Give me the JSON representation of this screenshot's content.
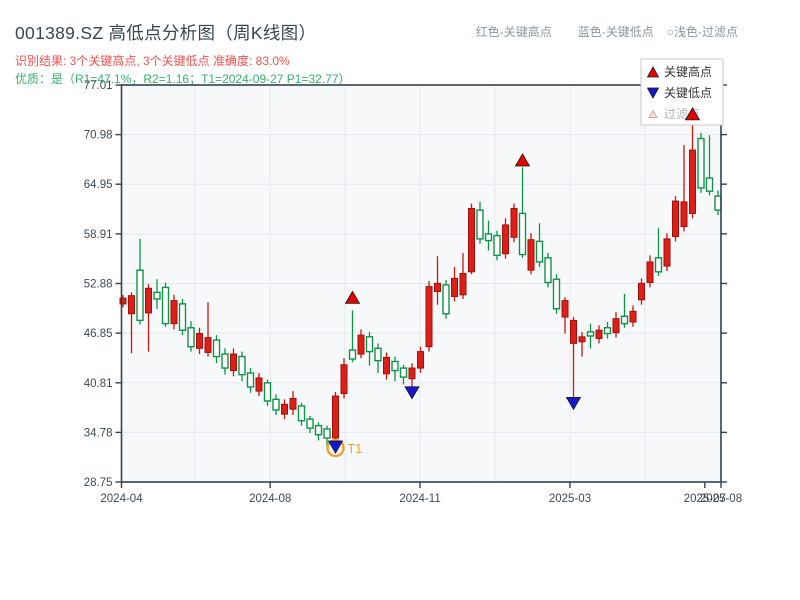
{
  "header": {
    "title": "001389.SZ 高低点分析图（周K线图）",
    "note_high": "红色-关键高点",
    "note_low": "蓝色-关键低点",
    "note_filtered": "○浅色-过滤点"
  },
  "analysis": {
    "result_line": "识别结果: 3个关键高点, 3个关键低点  准确度: 83.0%",
    "quality_line": "优质：是（R1=47.1%，R2=1.16；T1=2024-09-27 P1=32.77）"
  },
  "legend": {
    "items": [
      {
        "label": "关键高点",
        "marker": "high"
      },
      {
        "label": "关键低点",
        "marker": "low"
      },
      {
        "label": "过滤点",
        "marker": "filtered"
      }
    ]
  },
  "chart_data": {
    "type": "candlestick",
    "title": "001389.SZ 高低点分析图（周K线图）",
    "frequency": "weekly",
    "ylim": [
      28.75,
      77.01
    ],
    "grid": true,
    "y_ticks": [
      28.75,
      34.78,
      40.81,
      46.85,
      52.88,
      58.91,
      64.95,
      70.98,
      77.01
    ],
    "x_ticks": [
      {
        "label": "2024-04",
        "pos": 0.0
      },
      {
        "label": "2024-08",
        "pos": 0.248
      },
      {
        "label": "2024-11",
        "pos": 0.498
      },
      {
        "label": "2025-03",
        "pos": 0.748
      },
      {
        "label": "2025-07",
        "pos": 0.973
      },
      {
        "label": "2025-08",
        "pos": 1.0
      }
    ],
    "x_grid_pos": [
      0.122,
      0.248,
      0.373,
      0.498,
      0.623,
      0.748,
      0.873
    ],
    "candles_format": [
      "open",
      "high",
      "low",
      "close",
      "direction"
    ],
    "candles": [
      [
        50.4,
        51.5,
        50.0,
        51.1,
        "r"
      ],
      [
        49.2,
        51.8,
        44.4,
        51.4,
        "r"
      ],
      [
        54.5,
        58.3,
        47.9,
        48.4,
        "g"
      ],
      [
        49.3,
        52.8,
        44.6,
        52.3,
        "r"
      ],
      [
        51.8,
        53.4,
        49.8,
        51.0,
        "g"
      ],
      [
        52.4,
        53.0,
        47.6,
        48.0,
        "g"
      ],
      [
        48.0,
        51.5,
        47.3,
        50.8,
        "r"
      ],
      [
        50.4,
        51.0,
        46.6,
        47.2,
        "g"
      ],
      [
        47.5,
        48.3,
        44.6,
        45.2,
        "g"
      ],
      [
        45.0,
        47.5,
        44.3,
        46.8,
        "r"
      ],
      [
        44.5,
        50.6,
        44.0,
        46.3,
        "r"
      ],
      [
        46.0,
        46.6,
        43.2,
        44.0,
        "g"
      ],
      [
        44.3,
        45.0,
        41.8,
        42.6,
        "g"
      ],
      [
        42.3,
        45.0,
        41.6,
        44.3,
        "r"
      ],
      [
        44.0,
        44.6,
        41.0,
        41.8,
        "g"
      ],
      [
        42.0,
        42.6,
        39.6,
        40.3,
        "g"
      ],
      [
        39.8,
        42.0,
        39.2,
        41.4,
        "r"
      ],
      [
        40.8,
        41.2,
        38.0,
        38.6,
        "g"
      ],
      [
        38.8,
        39.4,
        36.9,
        37.5,
        "g"
      ],
      [
        37.0,
        38.8,
        36.4,
        38.2,
        "r"
      ],
      [
        37.6,
        39.8,
        36.9,
        38.9,
        "r"
      ],
      [
        38.0,
        38.4,
        35.6,
        36.2,
        "g"
      ],
      [
        36.4,
        36.8,
        34.7,
        35.3,
        "g"
      ],
      [
        35.6,
        36.0,
        33.8,
        34.5,
        "g"
      ],
      [
        35.2,
        35.6,
        33.2,
        34.1,
        "g"
      ],
      [
        34.1,
        39.7,
        32.8,
        39.2,
        "r"
      ],
      [
        39.5,
        43.8,
        38.9,
        43.0,
        "r"
      ],
      [
        44.8,
        49.6,
        43.3,
        43.7,
        "g"
      ],
      [
        44.3,
        47.3,
        43.8,
        46.6,
        "r"
      ],
      [
        46.4,
        47.0,
        42.9,
        44.6,
        "g"
      ],
      [
        45.0,
        45.6,
        42.0,
        43.5,
        "g"
      ],
      [
        41.9,
        44.5,
        41.2,
        43.9,
        "r"
      ],
      [
        43.4,
        44.0,
        41.0,
        42.3,
        "g"
      ],
      [
        42.6,
        43.0,
        40.6,
        41.5,
        "g"
      ],
      [
        41.3,
        43.2,
        40.2,
        42.6,
        "r"
      ],
      [
        42.6,
        45.2,
        42.0,
        44.6,
        "r"
      ],
      [
        45.2,
        53.2,
        44.6,
        52.5,
        "r"
      ],
      [
        51.9,
        56.2,
        50.3,
        52.9,
        "r"
      ],
      [
        52.7,
        53.3,
        48.6,
        49.2,
        "g"
      ],
      [
        51.3,
        54.9,
        50.7,
        53.5,
        "r"
      ],
      [
        51.5,
        56.6,
        51.0,
        54.1,
        "r"
      ],
      [
        54.3,
        62.6,
        54.0,
        62.0,
        "r"
      ],
      [
        61.8,
        62.8,
        57.7,
        58.3,
        "g"
      ],
      [
        58.9,
        60.5,
        56.9,
        58.1,
        "g"
      ],
      [
        58.7,
        59.3,
        55.7,
        56.3,
        "g"
      ],
      [
        56.5,
        60.8,
        55.9,
        60.0,
        "r"
      ],
      [
        58.5,
        62.6,
        57.9,
        62.0,
        "r"
      ],
      [
        61.4,
        67.0,
        56.0,
        56.4,
        "g"
      ],
      [
        54.5,
        59.0,
        54.0,
        58.2,
        "r"
      ],
      [
        58.0,
        60.2,
        54.9,
        55.5,
        "g"
      ],
      [
        56.0,
        56.6,
        52.4,
        53.0,
        "g"
      ],
      [
        53.4,
        54.0,
        49.2,
        49.8,
        "g"
      ],
      [
        48.8,
        51.2,
        46.8,
        50.8,
        "r"
      ],
      [
        45.6,
        48.8,
        39.1,
        48.4,
        "r"
      ],
      [
        45.8,
        47.0,
        44.0,
        46.4,
        "r"
      ],
      [
        47.0,
        48.0,
        45.0,
        46.5,
        "g"
      ],
      [
        46.2,
        47.8,
        45.6,
        47.2,
        "r"
      ],
      [
        47.5,
        48.2,
        46.2,
        46.8,
        "g"
      ],
      [
        46.9,
        49.4,
        46.3,
        48.6,
        "r"
      ],
      [
        48.9,
        51.6,
        47.5,
        48.0,
        "g"
      ],
      [
        48.2,
        50.2,
        47.6,
        49.5,
        "r"
      ],
      [
        50.9,
        53.5,
        50.3,
        52.9,
        "r"
      ],
      [
        53.0,
        56.3,
        52.4,
        55.5,
        "r"
      ],
      [
        56.0,
        59.6,
        53.8,
        54.3,
        "g"
      ],
      [
        55.0,
        59.0,
        54.4,
        58.3,
        "r"
      ],
      [
        58.6,
        63.5,
        58.0,
        62.9,
        "r"
      ],
      [
        59.8,
        69.7,
        59.2,
        62.8,
        "r"
      ],
      [
        61.4,
        72.6,
        60.8,
        69.1,
        "r"
      ],
      [
        70.5,
        71.2,
        63.9,
        64.5,
        "g"
      ],
      [
        65.7,
        70.9,
        63.6,
        64.1,
        "g"
      ],
      [
        63.5,
        64.2,
        61.2,
        61.8,
        "g"
      ]
    ],
    "markers": [
      {
        "week": 25,
        "price": 33.0,
        "type": "low",
        "circled": true,
        "label": "T1"
      },
      {
        "week": 27,
        "price": 51.2,
        "type": "high"
      },
      {
        "week": 34,
        "price": 39.6,
        "type": "low"
      },
      {
        "week": 47,
        "price": 67.9,
        "type": "high"
      },
      {
        "week": 53,
        "price": 38.3,
        "type": "low"
      },
      {
        "week": 67,
        "price": 73.5,
        "type": "high"
      }
    ],
    "colors": {
      "up_fill": "#dc1f1a",
      "up_edge": "#a31008",
      "up_wick": "#c41a12",
      "down_edge": "#0e9447",
      "down_fill": "#ffffff",
      "marker_high": "#e60000",
      "marker_low": "#1717cf",
      "marker_filtered_fill": "#f8ded7",
      "marker_filtered_edge": "#cfa89e",
      "marker_outline": "#1a1a1a",
      "t1_ring": "#f0a030",
      "spine": "#33434e",
      "grid": "#e4e8ee",
      "plot_bg": "#f7f8fa",
      "tick_label": "#3d4a55",
      "legend_text": "#333333",
      "legend_text_muted": "#b5b5b5",
      "legend_border": "#c9c9c9"
    }
  }
}
